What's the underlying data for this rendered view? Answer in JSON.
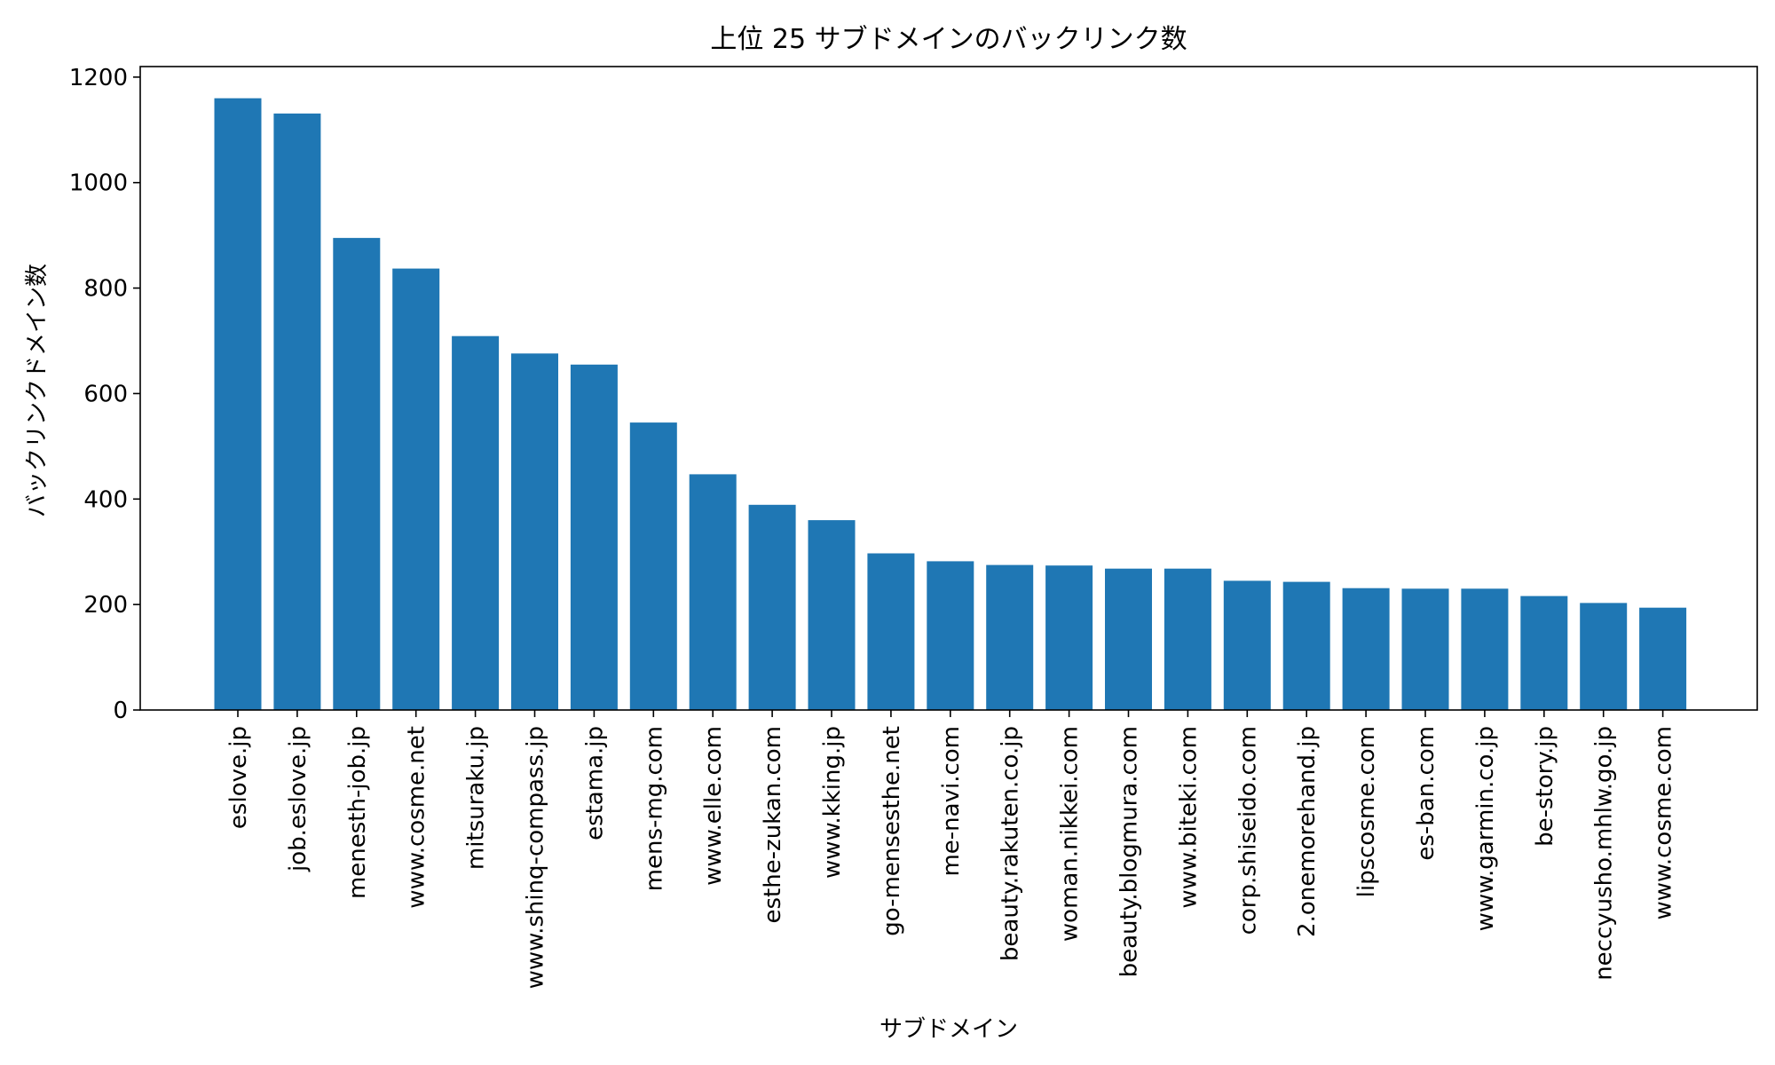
{
  "chart_data": {
    "type": "bar",
    "title": "上位 25 サブドメインのバックリンク数",
    "xlabel": "サブドメイン",
    "ylabel": "バックリンクドメイン数",
    "categories": [
      "eslove.jp",
      "job.eslove.jp",
      "menesth-job.jp",
      "www.cosme.net",
      "mitsuraku.jp",
      "www.shinq-compass.jp",
      "estama.jp",
      "mens-mg.com",
      "www.elle.com",
      "esthe-zukan.com",
      "www.kking.jp",
      "go-mensesthe.net",
      "me-navi.com",
      "beauty.rakuten.co.jp",
      "woman.nikkei.com",
      "beauty.blogmura.com",
      "www.biteki.com",
      "corp.shiseido.com",
      "2.onemorehand.jp",
      "lipscosme.com",
      "es-ban.com",
      "www.garmin.co.jp",
      "be-story.jp",
      "neccyusho.mhlw.go.jp",
      "www.cosme.com"
    ],
    "values": [
      1160,
      1131,
      895,
      837,
      709,
      676,
      655,
      545,
      447,
      389,
      360,
      297,
      282,
      275,
      274,
      268,
      268,
      245,
      243,
      231,
      230,
      230,
      216,
      203,
      194
    ],
    "ylim": [
      0,
      1220
    ],
    "yticks": [
      0,
      200,
      400,
      600,
      800,
      1000,
      1200
    ],
    "grid": false,
    "legend": "none",
    "bar_color": "#1f77b4",
    "axis_color": "#000000"
  }
}
